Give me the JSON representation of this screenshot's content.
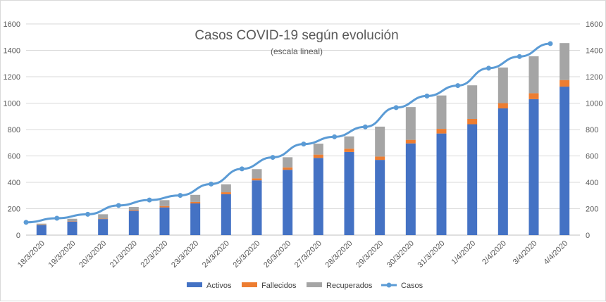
{
  "chart_data": {
    "type": "bar",
    "title": "Casos COVID-19 según evolución",
    "subtitle": "(escala lineal)",
    "categories": [
      "18/3/2020",
      "19/3/2020",
      "20/3/2020",
      "21/3/2020",
      "22/3/2020",
      "23/3/2020",
      "24/3/2020",
      "25/3/2020",
      "26/3/2020",
      "27/3/2020",
      "28/3/2020",
      "29/3/2020",
      "30/3/2020",
      "31/3/2020",
      "1/4/2020",
      "2/4/2020",
      "3/4/2020",
      "4/4/2020"
    ],
    "series": [
      {
        "name": "Activos",
        "kind": "stacked-bar",
        "color": "#4472c4",
        "values": [
          75,
          103,
          122,
          185,
          210,
          240,
          310,
          415,
          495,
          585,
          630,
          570,
          695,
          770,
          840,
          960,
          1030,
          1125
        ]
      },
      {
        "name": "Fallecidos",
        "kind": "stacked-bar",
        "color": "#ed7d31",
        "values": [
          2,
          3,
          3,
          6,
          10,
          11,
          15,
          15,
          18,
          25,
          25,
          25,
          27,
          35,
          40,
          40,
          45,
          50
        ]
      },
      {
        "name": "Recuperados",
        "kind": "stacked-bar",
        "color": "#a5a5a5",
        "values": [
          10,
          18,
          33,
          22,
          45,
          54,
          60,
          70,
          77,
          83,
          93,
          227,
          248,
          253,
          255,
          270,
          280,
          280
        ]
      },
      {
        "name": "Casos",
        "kind": "line",
        "color": "#5b9bd5",
        "values": [
          97,
          128,
          158,
          225,
          266,
          301,
          387,
          502,
          589,
          690,
          745,
          820,
          966,
          1054,
          1133,
          1265,
          1353,
          1451
        ]
      }
    ],
    "y_left": {
      "min": 0,
      "max": 1600,
      "ticks": [
        0,
        200,
        400,
        600,
        800,
        1000,
        1200,
        1400,
        1600
      ]
    },
    "y_right": {
      "min": 0,
      "max": 1600,
      "ticks": [
        0,
        200,
        400,
        600,
        800,
        1000,
        1200,
        1400,
        1600
      ]
    },
    "line_start_value": 97,
    "grid": true,
    "legend_position": "bottom"
  }
}
